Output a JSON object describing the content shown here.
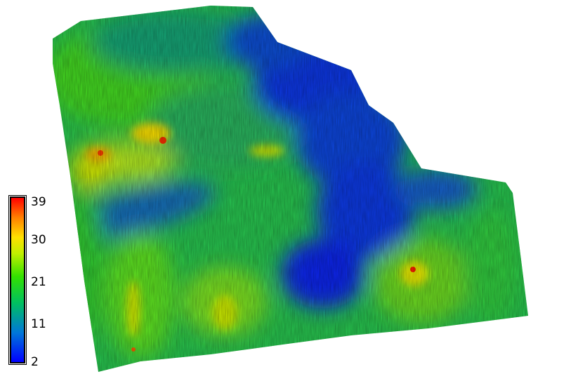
{
  "legend": {
    "ticks": [
      {
        "label": "39",
        "value": 39
      },
      {
        "label": "30",
        "value": 30
      },
      {
        "label": "21",
        "value": 21
      },
      {
        "label": "11",
        "value": 11
      },
      {
        "label": "2",
        "value": 2
      }
    ],
    "min": 2,
    "max": 39,
    "colors": [
      "#0000ff",
      "#0078d8",
      "#00c060",
      "#33e000",
      "#c0f000",
      "#ffe000",
      "#ff8000",
      "#ff0000"
    ]
  },
  "colors": {
    "background": "#ffffff",
    "low": "#0000ff",
    "mid": "#33e000",
    "high": "#ff0000"
  }
}
